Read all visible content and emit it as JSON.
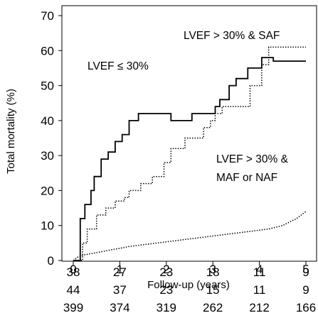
{
  "chart_data": {
    "type": "line",
    "title": "",
    "xlabel": "Follow-up (years)",
    "ylabel": "Total mortality (%)",
    "xlim": [
      0,
      5
    ],
    "ylim": [
      0,
      70
    ],
    "x_ticks": [
      "0",
      "1",
      "2",
      "3",
      "4",
      "5"
    ],
    "y_ticks": [
      "0",
      "10",
      "20",
      "30",
      "40",
      "50",
      "60",
      "70"
    ],
    "grid": false,
    "series": [
      {
        "name": "LVEF > 30% & SAF",
        "style": "solid",
        "color": "#000000",
        "x": [
          0,
          0.15,
          0.15,
          0.25,
          0.25,
          0.38,
          0.38,
          0.45,
          0.45,
          0.6,
          0.6,
          0.75,
          0.75,
          0.9,
          0.9,
          1.05,
          1.05,
          1.2,
          1.2,
          1.4,
          1.4,
          1.62,
          1.62,
          1.85,
          1.85,
          2.1,
          2.1,
          2.55,
          2.55,
          2.75,
          2.75,
          3.05,
          3.05,
          3.15,
          3.15,
          3.35,
          3.35,
          3.5,
          3.5,
          3.75,
          3.75,
          4.05,
          4.05,
          4.3,
          4.3,
          5.0
        ],
        "y": [
          0,
          0,
          12,
          12,
          16,
          16,
          20,
          20,
          24,
          24,
          29,
          29,
          31,
          31,
          34,
          34,
          36,
          36,
          40,
          40,
          42,
          42,
          42,
          42,
          42,
          42,
          40,
          40,
          42,
          42,
          42,
          42,
          44,
          44,
          46,
          46,
          50,
          50,
          52,
          52,
          55,
          55,
          58,
          58,
          57,
          57
        ]
      },
      {
        "name": "LVEF ≤ 30%",
        "style": "dotted",
        "color": "#000000",
        "x": [
          0,
          0.2,
          0.2,
          0.3,
          0.3,
          0.5,
          0.5,
          0.7,
          0.7,
          0.9,
          0.9,
          1.1,
          1.1,
          1.2,
          1.2,
          1.45,
          1.45,
          1.7,
          1.7,
          1.95,
          1.95,
          2.1,
          2.1,
          2.4,
          2.4,
          2.8,
          2.8,
          2.95,
          2.95,
          3.05,
          3.05,
          3.2,
          3.2,
          3.8,
          3.8,
          4.05,
          4.05,
          4.2,
          4.2,
          5.0
        ],
        "y": [
          0,
          0,
          5,
          5,
          9,
          9,
          13,
          13,
          15,
          15,
          17,
          17,
          18,
          18,
          20,
          20,
          22,
          22,
          24,
          24,
          28,
          28,
          32,
          32,
          35,
          35,
          38,
          38,
          40,
          40,
          42,
          42,
          44,
          44,
          50,
          50,
          56,
          56,
          61,
          61
        ]
      },
      {
        "name": "LVEF > 30% & MAF or NAF",
        "style": "dotted",
        "color": "#000000",
        "x": [
          0,
          0.1,
          0.2,
          0.4,
          0.6,
          0.8,
          1.0,
          1.2,
          1.5,
          1.8,
          2.1,
          2.4,
          2.7,
          3.0,
          3.3,
          3.6,
          3.9,
          4.2,
          4.5,
          4.8,
          5.0
        ],
        "y": [
          0,
          1,
          1.5,
          2,
          2.5,
          3,
          3.5,
          4,
          4.5,
          5,
          5.5,
          6,
          6.5,
          7,
          7.5,
          8,
          8.5,
          9,
          10,
          12,
          14
        ]
      }
    ],
    "annotations": [
      {
        "text": "LVEF > 30% & SAF"
      },
      {
        "text": "LVEF ≤ 30%"
      },
      {
        "text": "LVEF > 30% &"
      },
      {
        "text": "MAF or NAF"
      }
    ],
    "risk_table": [
      [
        "38",
        "27",
        "23",
        "18",
        "11",
        "9"
      ],
      [
        "44",
        "37",
        "23",
        "15",
        "11",
        "9"
      ],
      [
        "399",
        "374",
        "319",
        "262",
        "212",
        "166"
      ]
    ]
  }
}
